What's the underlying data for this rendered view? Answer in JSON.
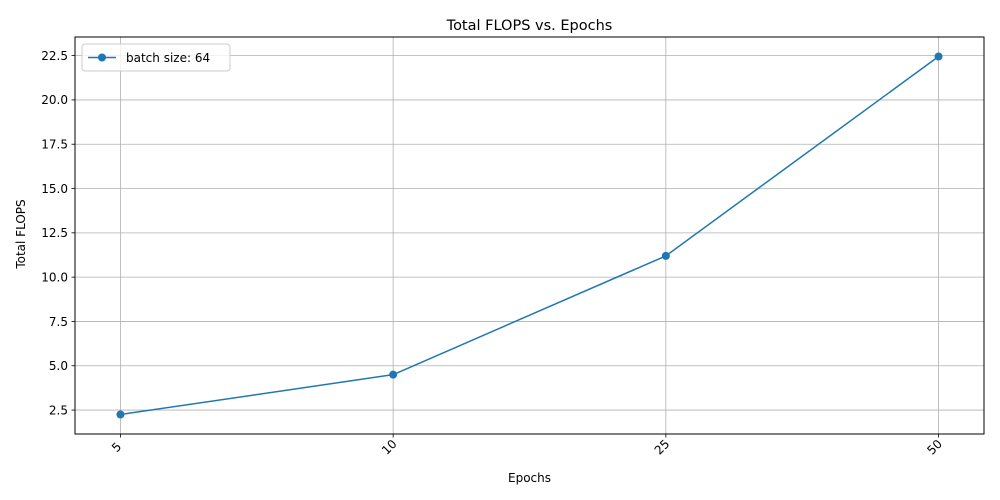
{
  "chart_data": {
    "type": "line",
    "title": "Total FLOPS vs. Epochs",
    "xlabel": "Epochs",
    "ylabel": "Total FLOPS",
    "categories": [
      "5",
      "10",
      "25",
      "50"
    ],
    "series": [
      {
        "name": "batch size: 64",
        "values": [
          2.25,
          4.5,
          11.2,
          22.45
        ],
        "color": "#1f77b4"
      }
    ],
    "ylim": [
      1.15,
      23.55
    ],
    "yticks": [
      2.5,
      5.0,
      7.5,
      10.0,
      12.5,
      15.0,
      17.5,
      20.0,
      22.5
    ],
    "ytick_labels": [
      "2.5",
      "5.0",
      "7.5",
      "10.0",
      "12.5",
      "15.0",
      "17.5",
      "20.0",
      "22.5"
    ],
    "grid": true,
    "legend_position": "top-left",
    "x_tick_rotation": -45
  }
}
